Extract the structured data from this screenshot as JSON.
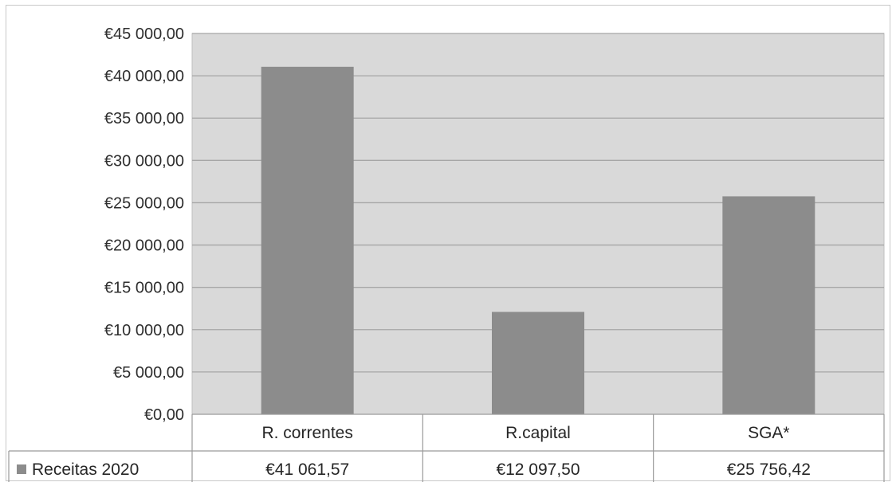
{
  "chart_data": {
    "type": "bar",
    "categories": [
      "R. correntes",
      "R.capital",
      "SGA*"
    ],
    "series": [
      {
        "name": "Receitas 2020",
        "values": [
          41061.57,
          12097.5,
          25756.42
        ],
        "labels": [
          "€41 061,57",
          "€12 097,50",
          "€25 756,42"
        ]
      }
    ],
    "ylim": [
      0,
      45000
    ],
    "yticks": [
      0,
      5000,
      10000,
      15000,
      20000,
      25000,
      30000,
      35000,
      40000,
      45000
    ],
    "ytick_labels": [
      "€0,00",
      "€5 000,00",
      "€10 000,00",
      "€15 000,00",
      "€20 000,00",
      "€25 000,00",
      "€30 000,00",
      "€35 000,00",
      "€40 000,00",
      "€45 000,00"
    ],
    "grid": true,
    "legend": "data-table",
    "colors": {
      "bar": "#8c8c8c",
      "plot_background": "#d9d9d9",
      "gridline": "#a6a6a6",
      "legend_key": "#8c8c8c"
    }
  }
}
